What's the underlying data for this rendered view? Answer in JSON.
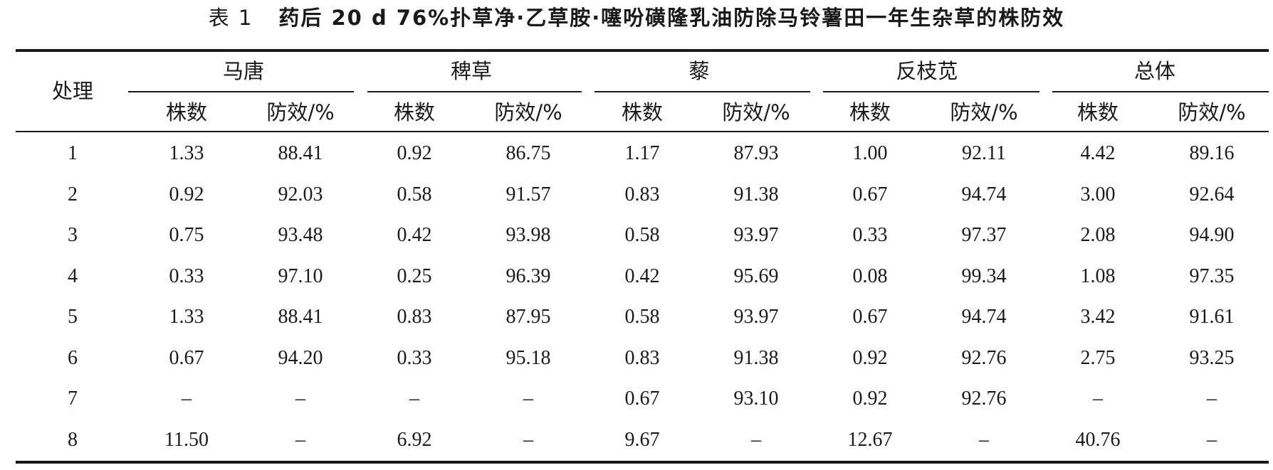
{
  "caption": {
    "label": "表 1",
    "text": "药后 20 d 76%扑草净·乙草胺·噻吩磺隆乳油防除马铃薯田一年生杂草的株防效"
  },
  "table": {
    "row_header": "处理",
    "groups": [
      {
        "name": "马唐"
      },
      {
        "name": "稗草"
      },
      {
        "name": "藜"
      },
      {
        "name": "反枝苋"
      },
      {
        "name": "总体"
      }
    ],
    "sub_headers": [
      "株数",
      "防效/%"
    ],
    "rows": [
      {
        "id": "1",
        "values": [
          "1.33",
          "88.41",
          "0.92",
          "86.75",
          "1.17",
          "87.93",
          "1.00",
          "92.11",
          "4.42",
          "89.16"
        ]
      },
      {
        "id": "2",
        "values": [
          "0.92",
          "92.03",
          "0.58",
          "91.57",
          "0.83",
          "91.38",
          "0.67",
          "94.74",
          "3.00",
          "92.64"
        ]
      },
      {
        "id": "3",
        "values": [
          "0.75",
          "93.48",
          "0.42",
          "93.98",
          "0.58",
          "93.97",
          "0.33",
          "97.37",
          "2.08",
          "94.90"
        ]
      },
      {
        "id": "4",
        "values": [
          "0.33",
          "97.10",
          "0.25",
          "96.39",
          "0.42",
          "95.69",
          "0.08",
          "99.34",
          "1.08",
          "97.35"
        ]
      },
      {
        "id": "5",
        "values": [
          "1.33",
          "88.41",
          "0.83",
          "87.95",
          "0.58",
          "93.97",
          "0.67",
          "94.74",
          "3.42",
          "91.61"
        ]
      },
      {
        "id": "6",
        "values": [
          "0.67",
          "94.20",
          "0.33",
          "95.18",
          "0.83",
          "91.38",
          "0.92",
          "92.76",
          "2.75",
          "93.25"
        ]
      },
      {
        "id": "7",
        "values": [
          "–",
          "–",
          "–",
          "–",
          "0.67",
          "93.10",
          "0.92",
          "92.76",
          "–",
          "–"
        ]
      },
      {
        "id": "8",
        "values": [
          "11.50",
          "–",
          "6.92",
          "–",
          "9.67",
          "–",
          "12.67",
          "–",
          "40.76",
          "–"
        ]
      }
    ]
  }
}
